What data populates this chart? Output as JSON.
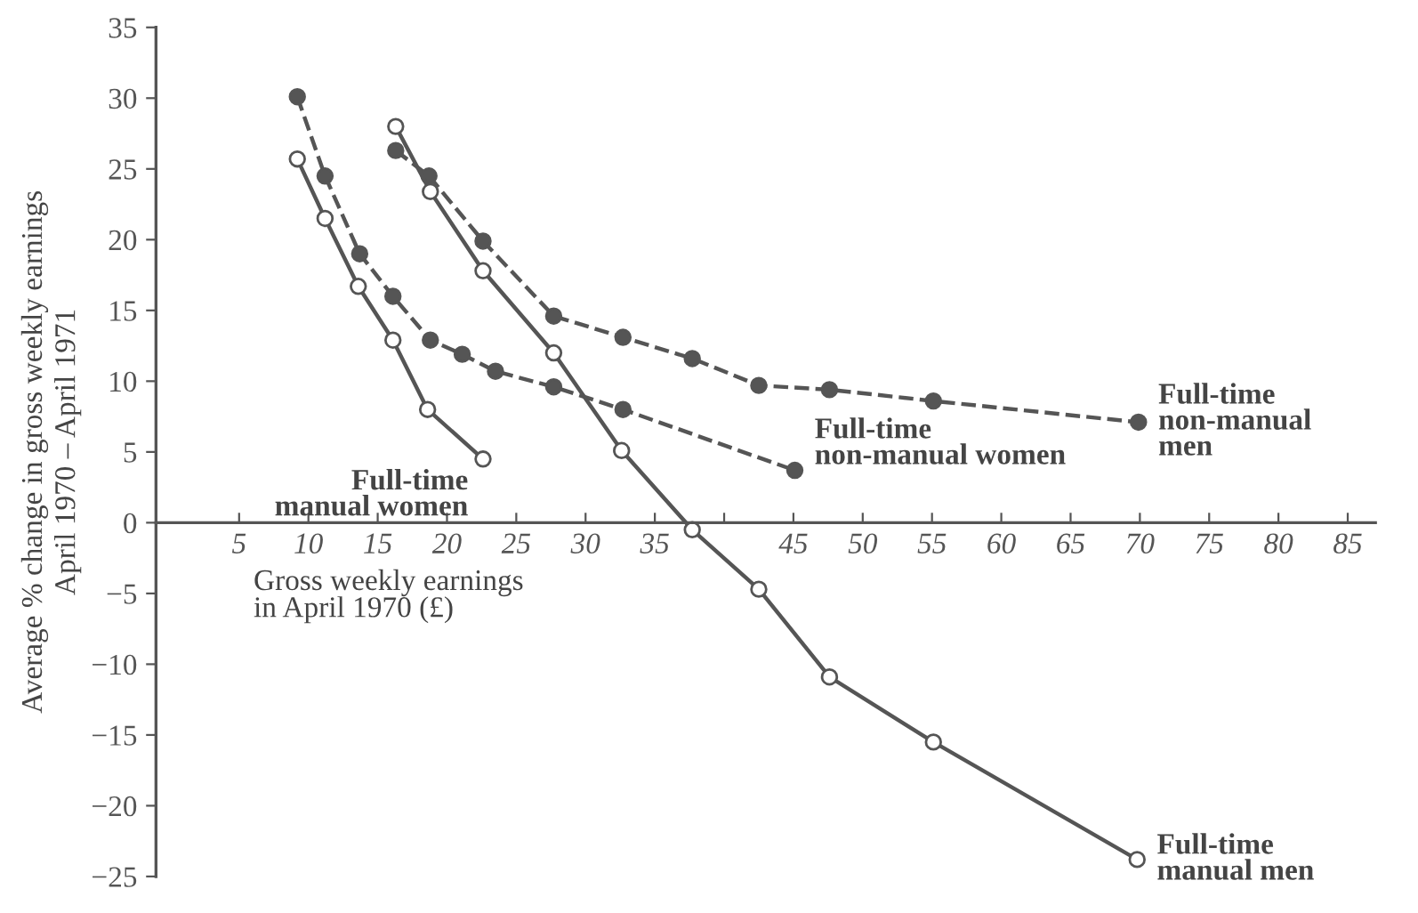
{
  "chart_data": {
    "type": "line",
    "ylabel": "Average % change in gross weekly earnings\nApril 1970 – April 1971",
    "xlabel": "Gross weekly earnings\nin April 1970 (£)",
    "xlim": [
      -1,
      87
    ],
    "ylim": [
      -25,
      35
    ],
    "xticks": [
      5,
      10,
      15,
      20,
      25,
      30,
      35,
      {
        "value": 40,
        "label": null
      },
      45,
      50,
      55,
      60,
      65,
      70,
      75,
      80,
      85
    ],
    "yticks": [
      -25,
      -20,
      -15,
      -10,
      -5,
      0,
      5,
      10,
      15,
      20,
      25,
      30,
      35
    ],
    "grid": false,
    "legend": false,
    "marker": "circle",
    "series": [
      {
        "name": "Full-time\nmanual women",
        "color": "#555555",
        "line_style": "solid",
        "x": [
          9.2,
          11.2,
          13.6,
          16.1,
          18.6,
          22.6
        ],
        "values": [
          25.7,
          21.5,
          16.7,
          12.9,
          8.0,
          4.5
        ]
      },
      {
        "name": "Full-time\nnon-manual women",
        "color": "#555555",
        "line_style": "dashed",
        "x": [
          9.2,
          11.2,
          13.7,
          16.1,
          18.8,
          21.1,
          23.5,
          27.7,
          32.7,
          45.1
        ],
        "values": [
          30.1,
          24.5,
          19.0,
          16.0,
          12.9,
          11.9,
          10.7,
          9.6,
          8.0,
          3.7
        ]
      },
      {
        "name": "Full-time\nnon-manual\nmen",
        "color": "#555555",
        "line_style": "dashed",
        "x": [
          16.3,
          18.7,
          22.6,
          27.7,
          32.7,
          37.7,
          42.5,
          47.6,
          55.1,
          69.9
        ],
        "values": [
          26.3,
          24.5,
          19.9,
          14.6,
          13.1,
          11.6,
          9.7,
          9.4,
          8.6,
          7.1
        ]
      },
      {
        "name": "Full-time\nmanual men",
        "color": "#555555",
        "line_style": "solid",
        "x": [
          16.3,
          18.8,
          22.6,
          27.7,
          32.6,
          37.7,
          42.5,
          47.6,
          55.1,
          69.8
        ],
        "values": [
          28.0,
          23.4,
          17.8,
          12.0,
          5.1,
          -0.5,
          -4.7,
          -10.9,
          -15.5,
          -23.8
        ]
      }
    ]
  }
}
